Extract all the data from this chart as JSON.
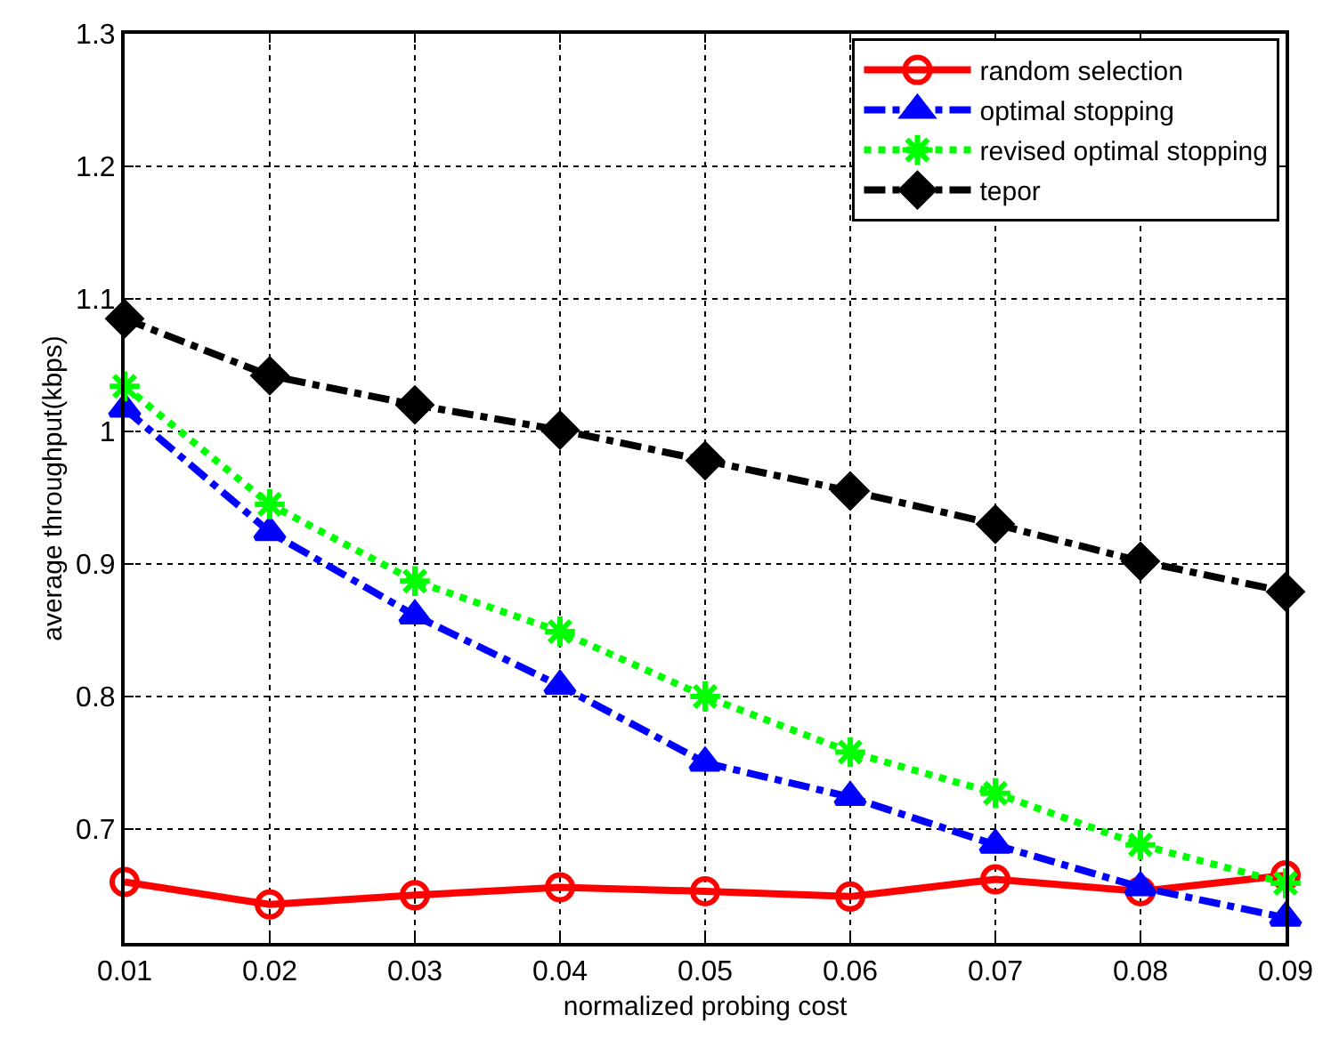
{
  "chart_data": {
    "type": "line",
    "xlabel": "normalized probing cost",
    "ylabel": "average throughput(kbps)",
    "x": [
      0.01,
      0.02,
      0.03,
      0.04,
      0.05,
      0.06,
      0.07,
      0.08,
      0.09
    ],
    "series": [
      {
        "name": "random selection",
        "color": "#ff0000",
        "marker": "circle",
        "line_style": "solid",
        "values": [
          0.66,
          0.643,
          0.65,
          0.656,
          0.653,
          0.649,
          0.662,
          0.653,
          0.665
        ]
      },
      {
        "name": "optimal stopping",
        "color": "#0000ff",
        "marker": "triangle",
        "line_style": "dashed",
        "values": [
          1.017,
          0.924,
          0.861,
          0.808,
          0.75,
          0.724,
          0.688,
          0.656,
          0.633
        ]
      },
      {
        "name": "revised optimal stopping",
        "color": "#00ff00",
        "marker": "cross",
        "line_style": "dotted",
        "values": [
          1.034,
          0.945,
          0.887,
          0.849,
          0.8,
          0.758,
          0.727,
          0.688,
          0.659
        ]
      },
      {
        "name": "tepor",
        "color": "#000000",
        "marker": "diamond",
        "line_style": "dashed",
        "values": [
          1.085,
          1.042,
          1.02,
          1.001,
          0.978,
          0.955,
          0.93,
          0.902,
          0.879
        ]
      }
    ],
    "xlim": [
      0.01,
      0.09
    ],
    "xticks": [
      {
        "value": 0.01,
        "label": "0.01"
      },
      {
        "value": 0.02,
        "label": "0.02"
      },
      {
        "value": 0.03,
        "label": "0.03"
      },
      {
        "value": 0.04,
        "label": "0.04"
      },
      {
        "value": 0.05,
        "label": "0.05"
      },
      {
        "value": 0.06,
        "label": "0.06"
      },
      {
        "value": 0.07,
        "label": "0.07"
      },
      {
        "value": 0.08,
        "label": "0.08"
      },
      {
        "value": 0.09,
        "label": "0.09"
      }
    ],
    "ylim": [
      0.614,
      1.3
    ],
    "yticks": [
      0.7,
      0.8,
      0.9,
      1,
      1.1,
      1.2,
      1.3
    ],
    "grid": true,
    "legend": "top right"
  }
}
